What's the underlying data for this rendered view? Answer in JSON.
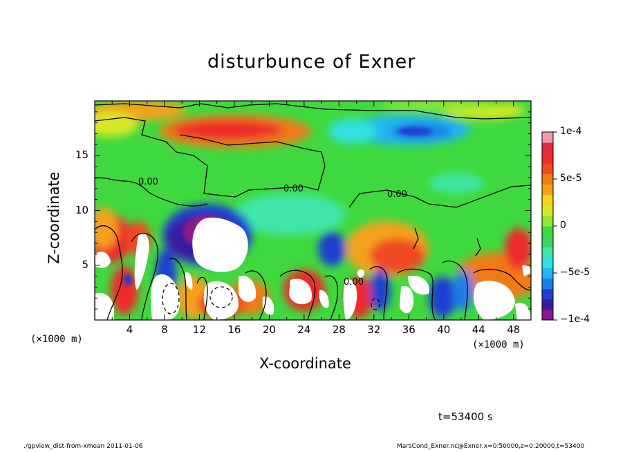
{
  "chart_data": {
    "type": "heatmap",
    "title": "disturbunce of Exner",
    "xlabel": "X-coordinate",
    "ylabel": "Z-coordinate",
    "x_unit": "(×1000 m)",
    "y_unit": "(×1000 m)",
    "xlim": [
      0,
      50
    ],
    "ylim": [
      0,
      20
    ],
    "x_ticks": [
      4,
      8,
      12,
      16,
      20,
      24,
      28,
      32,
      36,
      40,
      44,
      48
    ],
    "x_tick_labels": [
      "4",
      "8",
      "12",
      "16",
      "20",
      "24",
      "28",
      "32",
      "36",
      "40",
      "44",
      "48"
    ],
    "y_ticks": [
      5,
      10,
      15
    ],
    "y_tick_labels": [
      "5",
      "10",
      "15"
    ],
    "colorbar": {
      "range": [
        -0.0001,
        0.0001
      ],
      "tick_labels": [
        "1e-4",
        "5e-5",
        "0",
        "−5e-5",
        "−1e-4"
      ],
      "colors": [
        "#8b1a8b",
        "#3a1aa0",
        "#1f3fd0",
        "#1f7fe8",
        "#20b6f0",
        "#30e0e0",
        "#40e6a8",
        "#3ed46a",
        "#3fd93f",
        "#8fe82e",
        "#d8e828",
        "#f2d21e",
        "#f5a21a",
        "#f07a18",
        "#ee4a22",
        "#ee2a2a",
        "#e22a44",
        "#f09aa6"
      ]
    },
    "contour_labels": [
      "0.00",
      "0.00",
      "0.00",
      "0.00"
    ],
    "colormap_note": "blue-green-red rainbow, white where beyond range"
  },
  "annotations": {
    "time": "t=53400 s",
    "footer_left": "./gpview_dist-from-xmean  2011-01-06",
    "footer_right": "MarsCond_Exner.nc@Exner,x=0:50000,z=0:20000,t=53400"
  }
}
